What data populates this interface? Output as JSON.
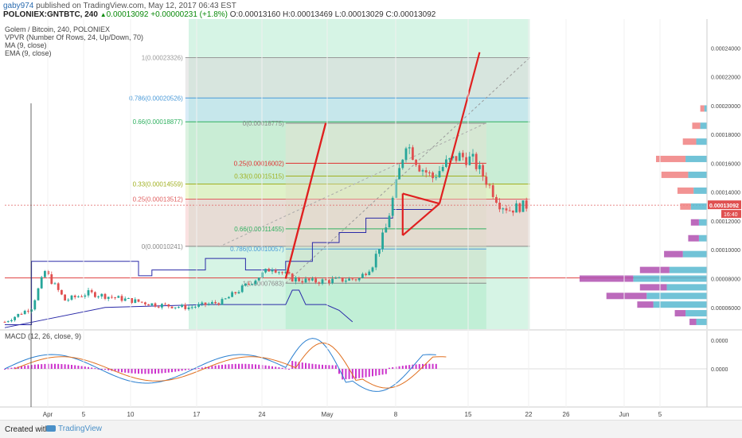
{
  "header": {
    "user": "gaby974",
    "published": "published on TradingView.com, May 12, 2017 06:43 EST",
    "symbol": "POLONIEX:GNTBTC, 240",
    "last": "0.00013092",
    "change": "+0.00000231 (+1.8%)",
    "ohlc": {
      "o": "O:0.00013160",
      "h": "H:0.00013469",
      "l": "L:0.00013029",
      "c": "C:0.00013092"
    }
  },
  "legend": [
    "Golem / Bitcoin, 240, POLONIEX",
    "VPVR (Number Of Rows, 24, Up/Down, 70)",
    "MA (9, close)",
    "EMA (9, close)"
  ],
  "macd_label": "MACD (12, 26, close, 9)",
  "footer": {
    "created": "Created with",
    "brand": "TradingView"
  },
  "colors": {
    "up": "#26a69a",
    "down": "#e05050",
    "ma": "#2a2aa8",
    "fib_red": "#e02020",
    "macd": "#2a7fd0",
    "signal": "#e07020",
    "hist": "#cc33cc"
  },
  "chart_data": {
    "type": "candlestick",
    "title": "Golem / Bitcoin, 240, POLONIEX",
    "x_ticks": [
      "Apr",
      "5",
      "10",
      "17",
      "24",
      "May",
      "8",
      "15",
      "22",
      "26",
      "Jun",
      "5"
    ],
    "y_ticks": [
      "0.00024000",
      "0.00022000",
      "0.00020000",
      "0.00018000",
      "0.00016000",
      "0.00014000",
      "0.00012000",
      "0.00010000",
      "0.00008000",
      "0.00006000"
    ],
    "ylim": [
      4.5e-05,
      0.00026
    ],
    "price_tag": "0.00013092",
    "time_tag": "16:40",
    "price_path": [
      [
        0,
        5e-05
      ],
      [
        8,
        6e-05
      ],
      [
        12,
        8.5e-05
      ],
      [
        18,
        6.5e-05
      ],
      [
        25,
        7e-05
      ],
      [
        35,
        6.6e-05
      ],
      [
        45,
        6.2e-05
      ],
      [
        55,
        6e-05
      ],
      [
        65,
        6.4e-05
      ],
      [
        72,
        7.5e-05
      ],
      [
        80,
        8.8e-05
      ],
      [
        86,
        8e-05
      ],
      [
        92,
        7.8e-05
      ],
      [
        100,
        7.9e-05
      ],
      [
        106,
        8e-05
      ],
      [
        110,
        9e-05
      ],
      [
        114,
        0.000115
      ],
      [
        117,
        0.000145
      ],
      [
        120,
        0.000175
      ],
      [
        124,
        0.000158
      ],
      [
        128,
        0.00015
      ],
      [
        132,
        0.00016
      ],
      [
        136,
        0.000165
      ],
      [
        140,
        0.000162
      ],
      [
        144,
        0.000148
      ],
      [
        148,
        0.000132
      ],
      [
        151,
        0.000128
      ],
      [
        154,
        0.00013
      ],
      [
        157,
        0.000131
      ]
    ],
    "fib_left": [
      {
        "label": "1(0.00023326)",
        "value": 0.00023326
      },
      {
        "label": "0.786(0.00020526)",
        "value": 0.00020526
      },
      {
        "label": "0.66(0.00018877)",
        "value": 0.00018877
      },
      {
        "label": "0.33(0.00014559)",
        "value": 0.00014559
      },
      {
        "label": "0.25(0.00013512)",
        "value": 0.00013512
      },
      {
        "label": "0(0.00010241)",
        "value": 0.00010241
      }
    ],
    "fib_right": [
      {
        "label": "0(0.00018775)",
        "value": 0.00018775
      },
      {
        "label": "0.25(0.00016002)",
        "value": 0.00016002
      },
      {
        "label": "0.33(0.00015115)",
        "value": 0.00015115
      },
      {
        "label": "0.66(0.00011455)",
        "value": 0.00011455
      },
      {
        "label": "0.786(0.00010057)",
        "value": 0.00010057
      },
      {
        "label": "1(0.00007683)",
        "value": 7.683e-05
      }
    ],
    "volume_profile": [
      {
        "price": 0.000198,
        "up": 2,
        "down": 3
      },
      {
        "price": 0.000186,
        "up": 5,
        "down": 6
      },
      {
        "price": 0.000175,
        "up": 8,
        "down": 10
      },
      {
        "price": 0.000163,
        "up": 16,
        "down": 22
      },
      {
        "price": 0.000152,
        "up": 14,
        "down": 20
      },
      {
        "price": 0.000141,
        "up": 10,
        "down": 12
      },
      {
        "price": 0.00013,
        "up": 12,
        "down": 8
      },
      {
        "price": 0.000119,
        "up": 6,
        "down": 6
      },
      {
        "price": 0.000108,
        "up": 6,
        "down": 8
      },
      {
        "price": 9.7e-05,
        "up": 18,
        "down": 14
      },
      {
        "price": 8.6e-05,
        "up": 28,
        "down": 22
      },
      {
        "price": 8e-05,
        "up": 55,
        "down": 40
      },
      {
        "price": 7.4e-05,
        "up": 30,
        "down": 20
      },
      {
        "price": 6.8e-05,
        "up": 45,
        "down": 30
      },
      {
        "price": 6.2e-05,
        "up": 40,
        "down": 12
      },
      {
        "price": 5.6e-05,
        "up": 16,
        "down": 8
      },
      {
        "price": 5e-05,
        "up": 8,
        "down": 5
      }
    ],
    "macd_y_ticks": [
      "0.0000",
      "0.0000"
    ]
  }
}
